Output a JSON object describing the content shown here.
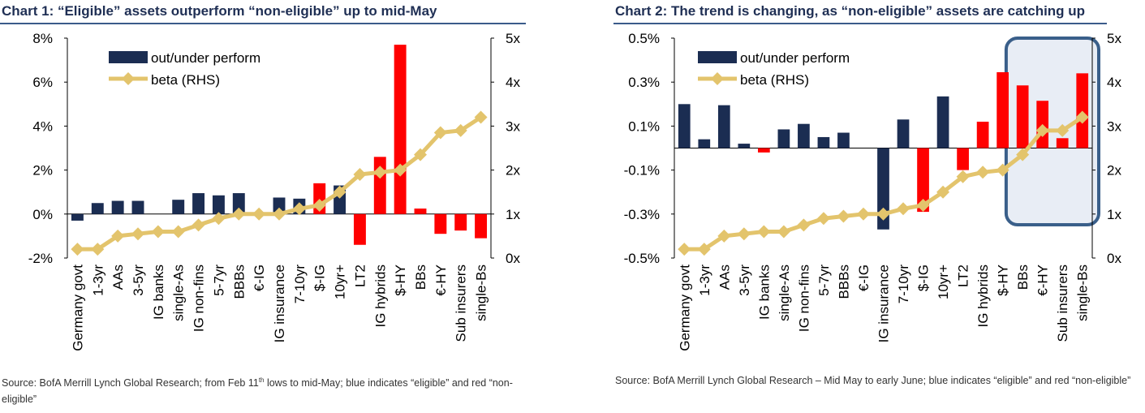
{
  "colors": {
    "eligible": "#1b2d52",
    "non_eligible": "#ff0000",
    "beta_line": "#e3c46c",
    "title": "#1f2f54",
    "highlight_fill": "#e8edf5",
    "highlight_stroke": "#3a5f8a"
  },
  "chart_data": [
    {
      "type": "bar+line",
      "title": "Chart 1: “Eligible” assets outperform “non-eligible” up to mid-May",
      "categories": [
        "Germany govt",
        "1-3yr",
        "AAs",
        "3-5yr",
        "IG banks",
        "single-As",
        "IG non-fins",
        "5-7yr",
        "BBBs",
        "€-IG",
        "IG insurance",
        "7-10yr",
        "$-IG",
        "10yr+",
        "LT2",
        "IG hybrids",
        "$-HY",
        "BBs",
        "€-HY",
        "Sub insurers",
        "single-Bs"
      ],
      "series": [
        {
          "name": "out/under perform",
          "axis": "left",
          "values": [
            -0.3,
            0.5,
            0.6,
            0.6,
            0,
            0.65,
            0.95,
            0.85,
            0.95,
            0,
            0.75,
            0.7,
            1.4,
            1.3,
            -1.4,
            2.6,
            7.7,
            0.25,
            -0.9,
            -0.75,
            -1.1
          ],
          "eligible": [
            true,
            true,
            true,
            true,
            true,
            true,
            true,
            true,
            true,
            true,
            true,
            true,
            false,
            true,
            false,
            false,
            false,
            false,
            false,
            false,
            false
          ]
        },
        {
          "name": "beta (RHS)",
          "axis": "right",
          "values": [
            0.2,
            0.2,
            0.5,
            0.55,
            0.6,
            0.6,
            0.75,
            0.9,
            1.0,
            1.0,
            1.0,
            1.12,
            1.2,
            1.5,
            1.9,
            1.95,
            2.0,
            2.35,
            2.85,
            2.9,
            3.2
          ]
        }
      ],
      "legend": {
        "bar_label": "out/under perform",
        "line_label": "beta (RHS)"
      },
      "y_left": {
        "min": -2,
        "max": 8,
        "ticks": [
          "-2%",
          "0%",
          "2%",
          "4%",
          "6%",
          "8%"
        ]
      },
      "y_right": {
        "min": 0,
        "max": 5,
        "ticks": [
          "0x",
          "1x",
          "2x",
          "3x",
          "4x",
          "5x"
        ]
      },
      "source_text": "Source: BofA Merrill Lynch Global Research; from Feb 11",
      "source_sup": "th",
      "source_text_2": " lows to mid-May; blue indicates “eligible” and red “non-eligible”"
    },
    {
      "type": "bar+line",
      "title": "Chart 2: The trend is changing, as “non-eligible” assets are catching up",
      "categories": [
        "Germany govt",
        "1-3yr",
        "AAs",
        "3-5yr",
        "IG banks",
        "single-As",
        "IG non-fins",
        "5-7yr",
        "BBBs",
        "€-IG",
        "IG insurance",
        "7-10yr",
        "$-IG",
        "10yr+",
        "LT2",
        "IG hybrids",
        "$-HY",
        "BBs",
        "€-HY",
        "Sub insurers",
        "single-Bs"
      ],
      "series": [
        {
          "name": "out/under perform",
          "axis": "left",
          "values": [
            0.2,
            0.04,
            0.195,
            0.02,
            -0.02,
            0.085,
            0.11,
            0.05,
            0.07,
            0,
            -0.37,
            0.13,
            -0.29,
            0.235,
            -0.1,
            0.12,
            0.345,
            0.285,
            0.215,
            0.045,
            0.34
          ],
          "eligible": [
            true,
            true,
            true,
            true,
            false,
            true,
            true,
            true,
            true,
            true,
            true,
            true,
            false,
            true,
            false,
            false,
            false,
            false,
            false,
            false,
            false
          ]
        },
        {
          "name": "beta (RHS)",
          "axis": "right",
          "values": [
            0.2,
            0.2,
            0.5,
            0.55,
            0.6,
            0.6,
            0.75,
            0.9,
            0.95,
            1.0,
            1.0,
            1.12,
            1.2,
            1.5,
            1.85,
            1.95,
            2.0,
            2.35,
            2.9,
            2.9,
            3.2
          ]
        }
      ],
      "legend": {
        "bar_label": "out/under perform",
        "line_label": "beta (RHS)"
      },
      "y_left": {
        "min": -0.5,
        "max": 0.5,
        "ticks": [
          "-0.5%",
          "-0.3%",
          "-0.1%",
          "0.1%",
          "0.3%",
          "0.5%"
        ]
      },
      "y_right": {
        "min": 0,
        "max": 5,
        "ticks": [
          "0x",
          "1x",
          "2x",
          "3x",
          "4x",
          "5x"
        ]
      },
      "highlight_from_category": "BBs",
      "source_text": "Source: BofA Merrill Lynch Global Research – Mid May to early June; blue indicates “eligible” and red “non-eligible”"
    }
  ]
}
